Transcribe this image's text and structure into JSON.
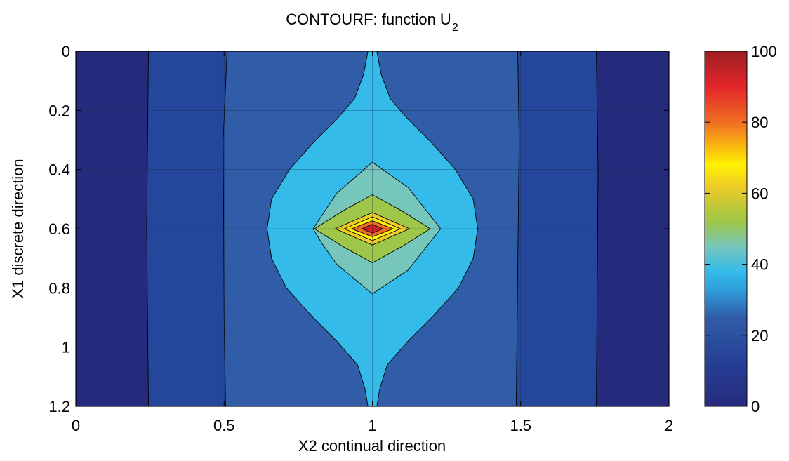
{
  "chart_data": {
    "type": "contourf",
    "title": "CONTOURF:  function U",
    "title_subscript": "2",
    "xlabel": "X2 continual direction",
    "ylabel": "X1 discrete direction",
    "xlim": [
      0,
      2
    ],
    "ylim": [
      0,
      1.2
    ],
    "y_reversed": true,
    "grid": true,
    "x_ticks": [
      0,
      0.5,
      1,
      1.5,
      2
    ],
    "x_tick_labels": [
      "0",
      "0.5",
      "1",
      "1.5",
      "2"
    ],
    "y_ticks": [
      0,
      0.2,
      0.4,
      0.6,
      0.8,
      1,
      1.2
    ],
    "y_tick_labels": [
      "0",
      "0.2",
      "0.4",
      "0.6",
      "0.8",
      "1",
      "1.2"
    ],
    "colorbar": {
      "position": "right",
      "range": [
        0,
        100
      ],
      "ticks": [
        0,
        20,
        40,
        60,
        80,
        100
      ],
      "tick_labels": [
        "0",
        "20",
        "40",
        "60",
        "80",
        "100"
      ],
      "colormap": "jet"
    },
    "levels": [
      {
        "value": 0,
        "color": "#262a7c"
      },
      {
        "value": 10,
        "color": "#25479b"
      },
      {
        "value": 20,
        "color": "#305ca8"
      },
      {
        "value": 30,
        "color": "#35bbea"
      },
      {
        "value": 40,
        "color": "#77c6bb"
      },
      {
        "value": 50,
        "color": "#9ec648"
      },
      {
        "value": 60,
        "color": "#eecb27"
      },
      {
        "value": 70,
        "color": "#fff100"
      },
      {
        "value": 80,
        "color": "#f06d23"
      },
      {
        "value": 90,
        "color": "#d32027"
      }
    ],
    "peak": {
      "x2": 1.0,
      "x1": 0.6,
      "value": 100
    }
  }
}
